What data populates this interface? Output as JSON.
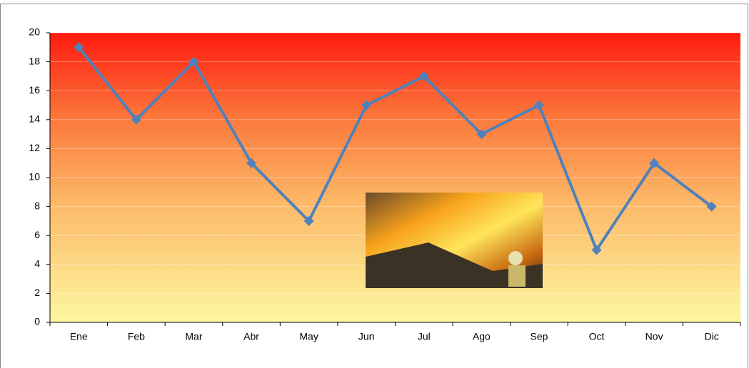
{
  "chart_data": {
    "type": "line",
    "categories": [
      "Ene",
      "Feb",
      "Mar",
      "Abr",
      "May",
      "Jun",
      "Jul",
      "Ago",
      "Sep",
      "Oct",
      "Nov",
      "Dic"
    ],
    "values": [
      19,
      14,
      18,
      11,
      7,
      15,
      17,
      13,
      15,
      5,
      11,
      8
    ],
    "color": "#4f81bd",
    "ylim": [
      0,
      20
    ],
    "yticks": [
      0,
      2,
      4,
      6,
      8,
      10,
      12,
      14,
      16,
      18,
      20
    ],
    "grid": true
  }
}
